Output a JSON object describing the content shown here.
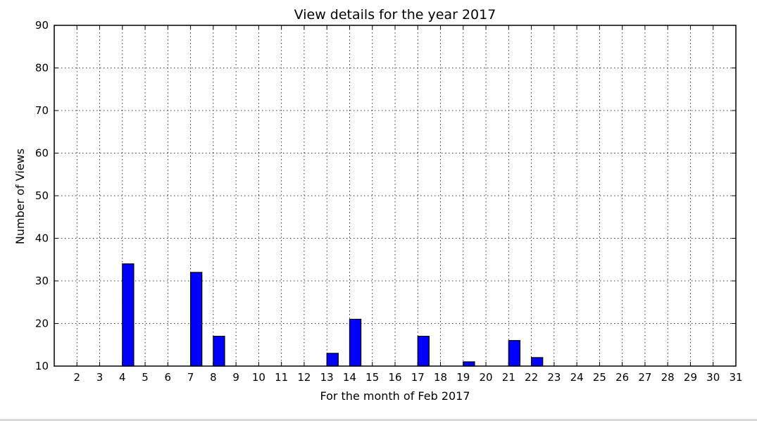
{
  "chart_data": {
    "type": "bar",
    "title": "View details for the year 2017",
    "xlabel": "For the month of Feb 2017",
    "ylabel": "Number of Views",
    "xlim": [
      1,
      31
    ],
    "ylim": [
      10,
      90
    ],
    "grid": true,
    "bar_color": "#0000ff",
    "x_ticks": [
      2,
      3,
      4,
      5,
      6,
      7,
      8,
      9,
      10,
      11,
      12,
      13,
      14,
      15,
      16,
      17,
      18,
      19,
      20,
      21,
      22,
      23,
      24,
      25,
      26,
      27,
      28,
      29,
      30,
      31
    ],
    "y_ticks": [
      10,
      20,
      30,
      40,
      50,
      60,
      70,
      80,
      90
    ],
    "points": [
      {
        "x": 4,
        "y": 34
      },
      {
        "x": 7,
        "y": 32
      },
      {
        "x": 8,
        "y": 17
      },
      {
        "x": 13,
        "y": 13
      },
      {
        "x": 14,
        "y": 21
      },
      {
        "x": 17,
        "y": 17
      },
      {
        "x": 19,
        "y": 11
      },
      {
        "x": 21,
        "y": 16
      },
      {
        "x": 22,
        "y": 12
      }
    ]
  }
}
